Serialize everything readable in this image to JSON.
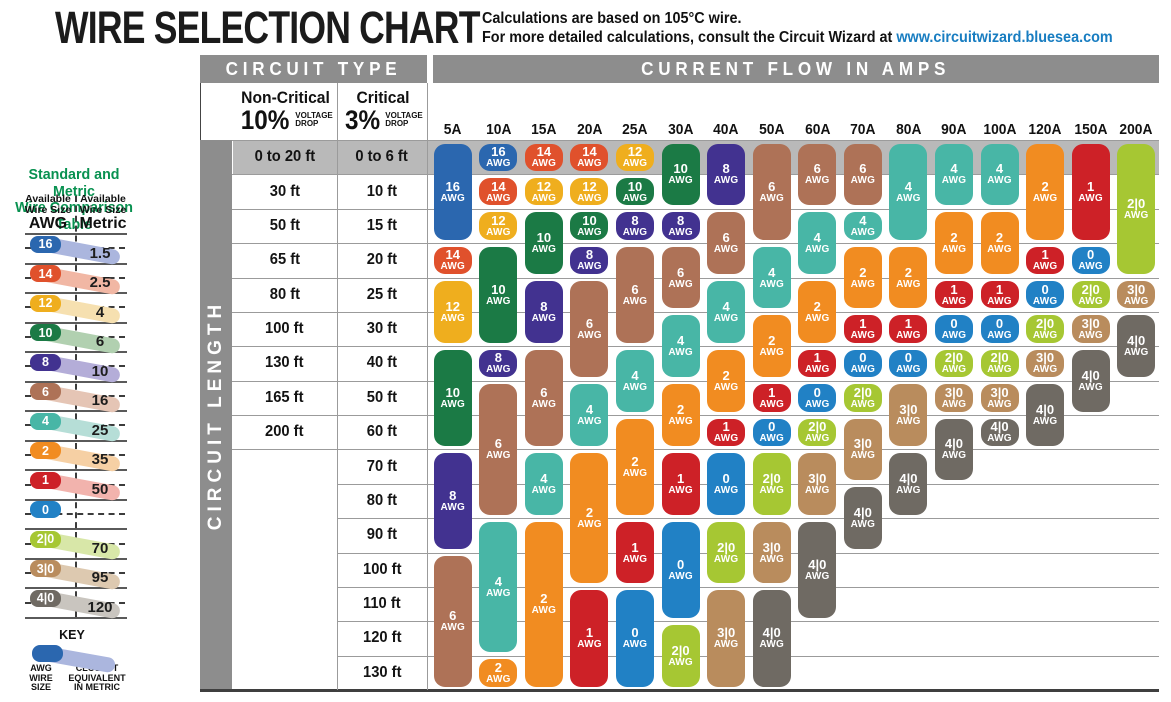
{
  "title": "WIRE SELECTION CHART",
  "subtitle": {
    "line1": "Calculations are based on 105°C wire.",
    "line2_prefix": "For more detailed calculations, consult the Circuit Wizard at ",
    "link": "www.circuitwizard.bluesea.com"
  },
  "table_headers": {
    "circuit_type": "CIRCUIT TYPE",
    "current_flow": "CURRENT FLOW IN AMPS",
    "circuit_length": "CIRCUIT LENGTH",
    "non_critical": "Non-Critical",
    "non_critical_pct": "10%",
    "critical": "Critical",
    "critical_pct": "3%",
    "voltage": "VOLTAGE",
    "drop": "DROP"
  },
  "sidebar": {
    "title_line1": "Standard and Metric",
    "title_line2": "Wire Comparison Table",
    "left_header": [
      "Available",
      "Wire Size",
      "AWG"
    ],
    "right_header": [
      "Available",
      "Wire Size",
      "Metric"
    ],
    "rows": [
      {
        "awg": "16",
        "metric": "1.5"
      },
      {
        "awg": "14",
        "metric": "2.5"
      },
      {
        "awg": "12",
        "metric": "4"
      },
      {
        "awg": "10",
        "metric": "6"
      },
      {
        "awg": "8",
        "metric": "10"
      },
      {
        "awg": "6",
        "metric": "16"
      },
      {
        "awg": "4",
        "metric": "25"
      },
      {
        "awg": "2",
        "metric": "35"
      },
      {
        "awg": "1",
        "metric": "50"
      },
      {
        "awg": "0",
        "metric": ""
      },
      {
        "awg": "2|0",
        "metric": "70"
      },
      {
        "awg": "3|0",
        "metric": "95"
      },
      {
        "awg": "4|0",
        "metric": "120"
      }
    ],
    "key": {
      "label": "KEY",
      "left": [
        "AWG",
        "WIRE",
        "SIZE"
      ],
      "right": [
        "CLOSEST",
        "EQUIVALENT",
        "IN METRIC"
      ]
    }
  },
  "wire_colors": {
    "16": {
      "main": "#2b67af",
      "light": "#abb6de"
    },
    "14": {
      "main": "#e0512c",
      "light": "#f1b7a4"
    },
    "12": {
      "main": "#efae1e",
      "light": "#f6e0b0"
    },
    "10": {
      "main": "#1b7a45",
      "light": "#b1d0b0"
    },
    "8": {
      "main": "#423290",
      "light": "#b4add8"
    },
    "6": {
      "main": "#ae7257",
      "light": "#e5c5b5"
    },
    "4": {
      "main": "#48b6a6",
      "light": "#b6ded7"
    },
    "2": {
      "main": "#f18c21",
      "light": "#f6d0a4"
    },
    "1": {
      "main": "#cd2127",
      "light": "#f2b3ad"
    },
    "0": {
      "main": "#2181c5",
      "light": "#a9cce8"
    },
    "2|0": {
      "main": "#a6c733",
      "light": "#d8e7a8"
    },
    "3|0": {
      "main": "#b98c5d",
      "light": "#ddc9b0"
    },
    "4|0": {
      "main": "#6f6a63",
      "light": "#c9c5bf"
    }
  },
  "chart_data": {
    "type": "table",
    "title": "WIRE SELECTION CHART",
    "x_axis": "CURRENT FLOW IN AMPS",
    "y_axis": "CIRCUIT LENGTH",
    "note": "AWG wire size by amps (columns) and circuit length (rows 1-16); rows 1-9 have both non-critical (10% voltage drop) and critical (3% voltage drop) lengths, rows 10-16 critical only",
    "amps": [
      "5A",
      "10A",
      "15A",
      "20A",
      "25A",
      "30A",
      "40A",
      "50A",
      "60A",
      "70A",
      "80A",
      "90A",
      "100A",
      "120A",
      "150A",
      "200A"
    ],
    "lengths": [
      {
        "row": 1,
        "non_critical": "0 to 20 ft",
        "critical": "0 to 6 ft"
      },
      {
        "row": 2,
        "non_critical": "30 ft",
        "critical": "10 ft"
      },
      {
        "row": 3,
        "non_critical": "50 ft",
        "critical": "15 ft"
      },
      {
        "row": 4,
        "non_critical": "65 ft",
        "critical": "20 ft"
      },
      {
        "row": 5,
        "non_critical": "80 ft",
        "critical": "25 ft"
      },
      {
        "row": 6,
        "non_critical": "100 ft",
        "critical": "30 ft"
      },
      {
        "row": 7,
        "non_critical": "130 ft",
        "critical": "40 ft"
      },
      {
        "row": 8,
        "non_critical": "165 ft",
        "critical": "50 ft"
      },
      {
        "row": 9,
        "non_critical": "200 ft",
        "critical": "60 ft"
      },
      {
        "row": 10,
        "non_critical": "",
        "critical": "70 ft"
      },
      {
        "row": 11,
        "non_critical": "",
        "critical": "80 ft"
      },
      {
        "row": 12,
        "non_critical": "",
        "critical": "90 ft"
      },
      {
        "row": 13,
        "non_critical": "",
        "critical": "100 ft"
      },
      {
        "row": 14,
        "non_critical": "",
        "critical": "110 ft"
      },
      {
        "row": 15,
        "non_critical": "",
        "critical": "120 ft"
      },
      {
        "row": 16,
        "non_critical": "",
        "critical": "130 ft"
      }
    ],
    "columns": [
      {
        "amp": "5A",
        "segments": [
          {
            "awg": "16",
            "rows": [
              1,
              3
            ]
          },
          {
            "awg": "14",
            "rows": [
              4,
              4
            ]
          },
          {
            "awg": "12",
            "rows": [
              5,
              6
            ]
          },
          {
            "awg": "10",
            "rows": [
              7,
              9
            ]
          },
          {
            "awg": "8",
            "rows": [
              10,
              12
            ]
          },
          {
            "awg": "6",
            "rows": [
              13,
              16
            ]
          }
        ]
      },
      {
        "amp": "10A",
        "segments": [
          {
            "awg": "16",
            "rows": [
              1,
              1
            ]
          },
          {
            "awg": "14",
            "rows": [
              2,
              2
            ]
          },
          {
            "awg": "12",
            "rows": [
              3,
              3
            ]
          },
          {
            "awg": "10",
            "rows": [
              4,
              6
            ]
          },
          {
            "awg": "8",
            "rows": [
              7,
              7
            ]
          },
          {
            "awg": "6",
            "rows": [
              8,
              11
            ]
          },
          {
            "awg": "4",
            "rows": [
              12,
              15
            ]
          },
          {
            "awg": "2",
            "rows": [
              16,
              16
            ]
          }
        ]
      },
      {
        "amp": "15A",
        "segments": [
          {
            "awg": "14",
            "rows": [
              1,
              1
            ]
          },
          {
            "awg": "12",
            "rows": [
              2,
              2
            ]
          },
          {
            "awg": "10",
            "rows": [
              3,
              4
            ]
          },
          {
            "awg": "8",
            "rows": [
              5,
              6
            ]
          },
          {
            "awg": "6",
            "rows": [
              7,
              9
            ]
          },
          {
            "awg": "4",
            "rows": [
              10,
              11
            ]
          },
          {
            "awg": "2",
            "rows": [
              12,
              16
            ]
          }
        ]
      },
      {
        "amp": "20A",
        "segments": [
          {
            "awg": "14",
            "rows": [
              1,
              1
            ]
          },
          {
            "awg": "12",
            "rows": [
              2,
              2
            ]
          },
          {
            "awg": "10",
            "rows": [
              3,
              3
            ]
          },
          {
            "awg": "8",
            "rows": [
              4,
              4
            ]
          },
          {
            "awg": "6",
            "rows": [
              5,
              7
            ]
          },
          {
            "awg": "4",
            "rows": [
              8,
              9
            ]
          },
          {
            "awg": "2",
            "rows": [
              10,
              13
            ]
          },
          {
            "awg": "1",
            "rows": [
              14,
              16
            ]
          }
        ]
      },
      {
        "amp": "25A",
        "segments": [
          {
            "awg": "12",
            "rows": [
              1,
              1
            ]
          },
          {
            "awg": "10",
            "rows": [
              2,
              2
            ]
          },
          {
            "awg": "8",
            "rows": [
              3,
              3
            ]
          },
          {
            "awg": "6",
            "rows": [
              4,
              6
            ]
          },
          {
            "awg": "4",
            "rows": [
              7,
              8
            ]
          },
          {
            "awg": "2",
            "rows": [
              9,
              11
            ]
          },
          {
            "awg": "1",
            "rows": [
              12,
              13
            ]
          },
          {
            "awg": "0",
            "rows": [
              14,
              16
            ]
          }
        ]
      },
      {
        "amp": "30A",
        "segments": [
          {
            "awg": "10",
            "rows": [
              1,
              2
            ]
          },
          {
            "awg": "8",
            "rows": [
              3,
              3
            ]
          },
          {
            "awg": "6",
            "rows": [
              4,
              5
            ]
          },
          {
            "awg": "4",
            "rows": [
              6,
              7
            ]
          },
          {
            "awg": "2",
            "rows": [
              8,
              9
            ]
          },
          {
            "awg": "1",
            "rows": [
              10,
              11
            ]
          },
          {
            "awg": "0",
            "rows": [
              12,
              14
            ]
          },
          {
            "awg": "2|0",
            "rows": [
              15,
              16
            ]
          }
        ]
      },
      {
        "amp": "40A",
        "segments": [
          {
            "awg": "8",
            "rows": [
              1,
              2
            ]
          },
          {
            "awg": "6",
            "rows": [
              3,
              4
            ]
          },
          {
            "awg": "4",
            "rows": [
              5,
              6
            ]
          },
          {
            "awg": "2",
            "rows": [
              7,
              8
            ]
          },
          {
            "awg": "1",
            "rows": [
              9,
              9
            ]
          },
          {
            "awg": "0",
            "rows": [
              10,
              11
            ]
          },
          {
            "awg": "2|0",
            "rows": [
              12,
              13
            ]
          },
          {
            "awg": "3|0",
            "rows": [
              14,
              16
            ]
          }
        ]
      },
      {
        "amp": "50A",
        "segments": [
          {
            "awg": "6",
            "rows": [
              1,
              3
            ]
          },
          {
            "awg": "4",
            "rows": [
              4,
              5
            ]
          },
          {
            "awg": "2",
            "rows": [
              6,
              7
            ]
          },
          {
            "awg": "1",
            "rows": [
              8,
              8
            ]
          },
          {
            "awg": "0",
            "rows": [
              9,
              9
            ]
          },
          {
            "awg": "2|0",
            "rows": [
              10,
              11
            ]
          },
          {
            "awg": "3|0",
            "rows": [
              12,
              13
            ]
          },
          {
            "awg": "4|0",
            "rows": [
              14,
              16
            ]
          }
        ]
      },
      {
        "amp": "60A",
        "segments": [
          {
            "awg": "6",
            "rows": [
              1,
              2
            ]
          },
          {
            "awg": "4",
            "rows": [
              3,
              4
            ]
          },
          {
            "awg": "2",
            "rows": [
              5,
              6
            ]
          },
          {
            "awg": "1",
            "rows": [
              7,
              7
            ]
          },
          {
            "awg": "0",
            "rows": [
              8,
              8
            ]
          },
          {
            "awg": "2|0",
            "rows": [
              9,
              9
            ]
          },
          {
            "awg": "3|0",
            "rows": [
              10,
              11
            ]
          },
          {
            "awg": "4|0",
            "rows": [
              12,
              14
            ]
          }
        ]
      },
      {
        "amp": "70A",
        "segments": [
          {
            "awg": "6",
            "rows": [
              1,
              2
            ]
          },
          {
            "awg": "4",
            "rows": [
              3,
              3
            ]
          },
          {
            "awg": "2",
            "rows": [
              4,
              5
            ]
          },
          {
            "awg": "1",
            "rows": [
              6,
              6
            ]
          },
          {
            "awg": "0",
            "rows": [
              7,
              7
            ]
          },
          {
            "awg": "2|0",
            "rows": [
              8,
              8
            ]
          },
          {
            "awg": "3|0",
            "rows": [
              9,
              10
            ]
          },
          {
            "awg": "4|0",
            "rows": [
              11,
              12
            ]
          }
        ]
      },
      {
        "amp": "80A",
        "segments": [
          {
            "awg": "4",
            "rows": [
              1,
              3
            ]
          },
          {
            "awg": "2",
            "rows": [
              4,
              5
            ]
          },
          {
            "awg": "1",
            "rows": [
              6,
              6
            ]
          },
          {
            "awg": "0",
            "rows": [
              7,
              7
            ]
          },
          {
            "awg": "3|0",
            "rows": [
              8,
              9
            ]
          },
          {
            "awg": "4|0",
            "rows": [
              10,
              11
            ]
          }
        ]
      },
      {
        "amp": "90A",
        "segments": [
          {
            "awg": "4",
            "rows": [
              1,
              2
            ]
          },
          {
            "awg": "2",
            "rows": [
              3,
              4
            ]
          },
          {
            "awg": "1",
            "rows": [
              5,
              5
            ]
          },
          {
            "awg": "0",
            "rows": [
              6,
              6
            ]
          },
          {
            "awg": "2|0",
            "rows": [
              7,
              7
            ]
          },
          {
            "awg": "3|0",
            "rows": [
              8,
              8
            ]
          },
          {
            "awg": "4|0",
            "rows": [
              9,
              10
            ]
          }
        ]
      },
      {
        "amp": "100A",
        "segments": [
          {
            "awg": "4",
            "rows": [
              1,
              2
            ]
          },
          {
            "awg": "2",
            "rows": [
              3,
              4
            ]
          },
          {
            "awg": "1",
            "rows": [
              5,
              5
            ]
          },
          {
            "awg": "0",
            "rows": [
              6,
              6
            ]
          },
          {
            "awg": "2|0",
            "rows": [
              7,
              7
            ]
          },
          {
            "awg": "3|0",
            "rows": [
              8,
              8
            ]
          },
          {
            "awg": "4|0",
            "rows": [
              9,
              9
            ]
          }
        ]
      },
      {
        "amp": "120A",
        "segments": [
          {
            "awg": "2",
            "rows": [
              1,
              3
            ]
          },
          {
            "awg": "1",
            "rows": [
              4,
              4
            ]
          },
          {
            "awg": "0",
            "rows": [
              5,
              5
            ]
          },
          {
            "awg": "2|0",
            "rows": [
              6,
              6
            ]
          },
          {
            "awg": "3|0",
            "rows": [
              7,
              7
            ]
          },
          {
            "awg": "4|0",
            "rows": [
              8,
              9
            ]
          }
        ]
      },
      {
        "amp": "150A",
        "segments": [
          {
            "awg": "1",
            "rows": [
              1,
              3
            ]
          },
          {
            "awg": "0",
            "rows": [
              4,
              4
            ]
          },
          {
            "awg": "2|0",
            "rows": [
              5,
              5
            ]
          },
          {
            "awg": "3|0",
            "rows": [
              6,
              6
            ]
          },
          {
            "awg": "4|0",
            "rows": [
              7,
              8
            ]
          }
        ]
      },
      {
        "amp": "200A",
        "segments": [
          {
            "awg": "2|0",
            "rows": [
              1,
              4
            ]
          },
          {
            "awg": "3|0",
            "rows": [
              5,
              5
            ]
          },
          {
            "awg": "4|0",
            "rows": [
              6,
              7
            ]
          }
        ]
      }
    ]
  }
}
